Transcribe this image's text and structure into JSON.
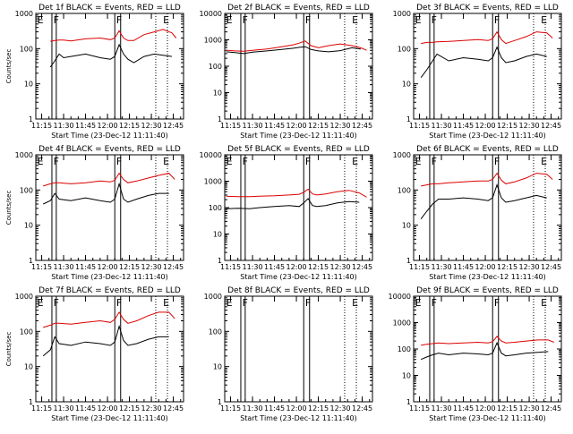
{
  "colors": {
    "events": "#000000",
    "lld": "#dd0000",
    "frame": "#000000",
    "background": "#ffffff"
  },
  "xticks": [
    "11:15",
    "11:30",
    "11:45",
    "12:00",
    "12:15",
    "12:30",
    "12:45"
  ],
  "yticks": [
    "1",
    "10",
    "100",
    "1000",
    "10000"
  ],
  "ylabel": "Counts/sec",
  "xlabel": "Start Time (23-Dec-12 11:11:40)",
  "marker_labels": [
    "E",
    "F",
    "F",
    "E"
  ],
  "chart_data": [
    {
      "type": "line",
      "title": "Det 1f BLACK = Events, RED = LLD",
      "ylabel": "Counts/sec",
      "xlabel": "Start Time (23-Dec-12 11:11:40)",
      "ylim": [
        1,
        1000
      ],
      "yscale": "log",
      "xlim": [
        "11:11",
        "12:52"
      ],
      "x": [
        "11:21",
        "11:24",
        "11:27",
        "11:30",
        "11:35",
        "11:45",
        "11:55",
        "12:02",
        "12:05",
        "12:08",
        "12:11",
        "12:14",
        "12:18",
        "12:25",
        "12:32",
        "12:38",
        "12:44",
        "12:47"
      ],
      "series": [
        {
          "name": "BLACK = Events",
          "values": [
            30,
            45,
            70,
            55,
            60,
            70,
            55,
            50,
            60,
            130,
            70,
            50,
            40,
            60,
            70,
            65,
            60,
            null
          ]
        },
        {
          "name": "RED = LLD",
          "values": [
            160,
            170,
            175,
            175,
            165,
            190,
            200,
            180,
            200,
            320,
            200,
            170,
            170,
            250,
            300,
            350,
            280,
            200
          ]
        }
      ]
    },
    {
      "type": "line",
      "title": "Det 2f BLACK = Events, RED = LLD",
      "ylabel": "",
      "xlabel": "Start Time (23-Dec-12 11:11:40)",
      "ylim": [
        1,
        10000
      ],
      "yscale": "log",
      "xlim": [
        "11:11",
        "12:52"
      ],
      "x": [
        "11:12",
        "11:18",
        "11:24",
        "11:30",
        "11:40",
        "11:50",
        "11:58",
        "12:02",
        "12:06",
        "12:10",
        "12:15",
        "12:22",
        "12:30",
        "12:38",
        "12:44",
        "12:48"
      ],
      "series": [
        {
          "name": "BLACK = Events",
          "values": [
            350,
            330,
            300,
            340,
            380,
            430,
            480,
            520,
            550,
            430,
            380,
            350,
            390,
            500,
            450,
            null
          ]
        },
        {
          "name": "RED = LLD",
          "values": [
            400,
            380,
            370,
            400,
            450,
            550,
            650,
            750,
            900,
            600,
            500,
            600,
            700,
            600,
            500,
            400
          ]
        }
      ]
    },
    {
      "type": "line",
      "title": "Det 3f BLACK = Events, RED = LLD",
      "ylabel": "",
      "xlabel": "Start Time (23-Dec-12 11:11:40)",
      "ylim": [
        1,
        1000
      ],
      "yscale": "log",
      "xlim": [
        "11:11",
        "12:52"
      ],
      "x": [
        "11:16",
        "11:20",
        "11:24",
        "11:27",
        "11:35",
        "11:45",
        "11:55",
        "12:02",
        "12:05",
        "12:08",
        "12:11",
        "12:14",
        "12:20",
        "12:28",
        "12:35",
        "12:42",
        "12:46"
      ],
      "series": [
        {
          "name": "BLACK = Events",
          "values": [
            15,
            25,
            45,
            70,
            45,
            55,
            50,
            45,
            55,
            110,
            55,
            40,
            45,
            60,
            70,
            60,
            null
          ]
        },
        {
          "name": "RED = LLD",
          "values": [
            140,
            150,
            150,
            155,
            160,
            170,
            180,
            170,
            190,
            300,
            180,
            140,
            170,
            220,
            300,
            280,
            200
          ]
        }
      ]
    },
    {
      "type": "line",
      "title": "Det 4f BLACK = Events, RED = LLD",
      "ylabel": "Counts/sec",
      "xlabel": "Start Time (23-Dec-12 11:11:40)",
      "ylim": [
        1,
        1000
      ],
      "yscale": "log",
      "xlim": [
        "11:11",
        "12:52"
      ],
      "x": [
        "11:16",
        "11:21",
        "11:24",
        "11:27",
        "11:35",
        "11:45",
        "11:55",
        "12:02",
        "12:05",
        "12:08",
        "12:11",
        "12:14",
        "12:20",
        "12:28",
        "12:35",
        "12:42",
        "12:46"
      ],
      "series": [
        {
          "name": "BLACK = Events",
          "values": [
            40,
            50,
            80,
            55,
            50,
            60,
            50,
            45,
            55,
            150,
            55,
            45,
            55,
            70,
            80,
            80,
            null
          ]
        },
        {
          "name": "RED = LLD",
          "values": [
            130,
            150,
            160,
            160,
            150,
            160,
            180,
            170,
            190,
            300,
            200,
            160,
            180,
            220,
            260,
            300,
            200
          ]
        }
      ]
    },
    {
      "type": "line",
      "title": "Det 5f BLACK = Events, RED = LLD",
      "ylabel": "",
      "xlabel": "Start Time (23-Dec-12 11:11:40)",
      "ylim": [
        1,
        10000
      ],
      "yscale": "log",
      "xlim": [
        "11:11",
        "12:52"
      ],
      "x": [
        "11:12",
        "11:20",
        "11:28",
        "11:35",
        "11:45",
        "11:55",
        "12:02",
        "12:05",
        "12:08",
        "12:11",
        "12:14",
        "12:20",
        "12:28",
        "12:36",
        "12:43",
        "12:48"
      ],
      "series": [
        {
          "name": "BLACK = Events",
          "values": [
            90,
            95,
            90,
            100,
            110,
            120,
            110,
            150,
            220,
            120,
            110,
            120,
            150,
            170,
            160,
            null
          ]
        },
        {
          "name": "RED = LLD",
          "values": [
            270,
            260,
            260,
            270,
            280,
            300,
            320,
            380,
            500,
            330,
            300,
            330,
            400,
            450,
            360,
            250
          ]
        }
      ]
    },
    {
      "type": "line",
      "title": "Det 6f BLACK = Events, RED = LLD",
      "ylabel": "",
      "xlabel": "Start Time (23-Dec-12 11:11:40)",
      "ylim": [
        1,
        1000
      ],
      "yscale": "log",
      "xlim": [
        "11:11",
        "12:52"
      ],
      "x": [
        "11:16",
        "11:20",
        "11:24",
        "11:28",
        "11:35",
        "11:45",
        "11:55",
        "12:02",
        "12:05",
        "12:08",
        "12:11",
        "12:14",
        "12:20",
        "12:28",
        "12:35",
        "12:42",
        "12:46"
      ],
      "series": [
        {
          "name": "BLACK = Events",
          "values": [
            15,
            25,
            40,
            55,
            55,
            60,
            55,
            50,
            60,
            140,
            60,
            45,
            50,
            60,
            70,
            60,
            null
          ]
        },
        {
          "name": "RED = LLD",
          "values": [
            130,
            140,
            150,
            150,
            160,
            170,
            180,
            180,
            200,
            300,
            190,
            150,
            170,
            220,
            300,
            280,
            200
          ]
        }
      ]
    },
    {
      "type": "line",
      "title": "Det 7f BLACK = Events, RED = LLD",
      "ylabel": "Counts/sec",
      "xlabel": "Start Time (23-Dec-12 11:11:40)",
      "ylim": [
        1,
        1000
      ],
      "yscale": "log",
      "xlim": [
        "11:11",
        "12:52"
      ],
      "x": [
        "11:16",
        "11:21",
        "11:24",
        "11:27",
        "11:35",
        "11:45",
        "11:55",
        "12:02",
        "12:05",
        "12:08",
        "12:11",
        "12:14",
        "12:20",
        "12:28",
        "12:35",
        "12:42",
        "12:46"
      ],
      "series": [
        {
          "name": "BLACK = Events",
          "values": [
            20,
            30,
            70,
            45,
            40,
            50,
            45,
            40,
            50,
            140,
            55,
            40,
            45,
            60,
            70,
            70,
            null
          ]
        },
        {
          "name": "RED = LLD",
          "values": [
            130,
            150,
            170,
            170,
            160,
            180,
            200,
            180,
            220,
            350,
            220,
            170,
            200,
            280,
            350,
            350,
            230
          ]
        }
      ]
    },
    {
      "type": "line",
      "title": "Det 8f BLACK = Events, RED = LLD",
      "ylabel": "",
      "xlabel": "Start Time (23-Dec-12 11:11:40)",
      "ylim": [
        1,
        1000
      ],
      "yscale": "log",
      "xlim": [
        "11:11",
        "12:52"
      ],
      "x": [],
      "series": [
        {
          "name": "BLACK = Events",
          "values": []
        },
        {
          "name": "RED = LLD",
          "values": []
        }
      ]
    },
    {
      "type": "line",
      "title": "Det 9f BLACK = Events, RED = LLD",
      "ylabel": "",
      "xlabel": "Start Time (23-Dec-12 11:11:40)",
      "ylim": [
        1,
        10000
      ],
      "yscale": "log",
      "xlim": [
        "11:11",
        "12:52"
      ],
      "x": [
        "11:16",
        "11:20",
        "11:24",
        "11:28",
        "11:35",
        "11:45",
        "11:55",
        "12:02",
        "12:05",
        "12:08",
        "12:11",
        "12:14",
        "12:20",
        "12:28",
        "12:36",
        "12:43",
        "12:47"
      ],
      "series": [
        {
          "name": "BLACK = Events",
          "values": [
            40,
            50,
            60,
            70,
            60,
            70,
            65,
            60,
            70,
            170,
            70,
            55,
            60,
            70,
            75,
            80,
            null
          ]
        },
        {
          "name": "RED = LLD",
          "values": [
            140,
            150,
            160,
            170,
            160,
            170,
            180,
            170,
            190,
            300,
            200,
            170,
            180,
            200,
            220,
            220,
            180
          ]
        }
      ]
    }
  ]
}
